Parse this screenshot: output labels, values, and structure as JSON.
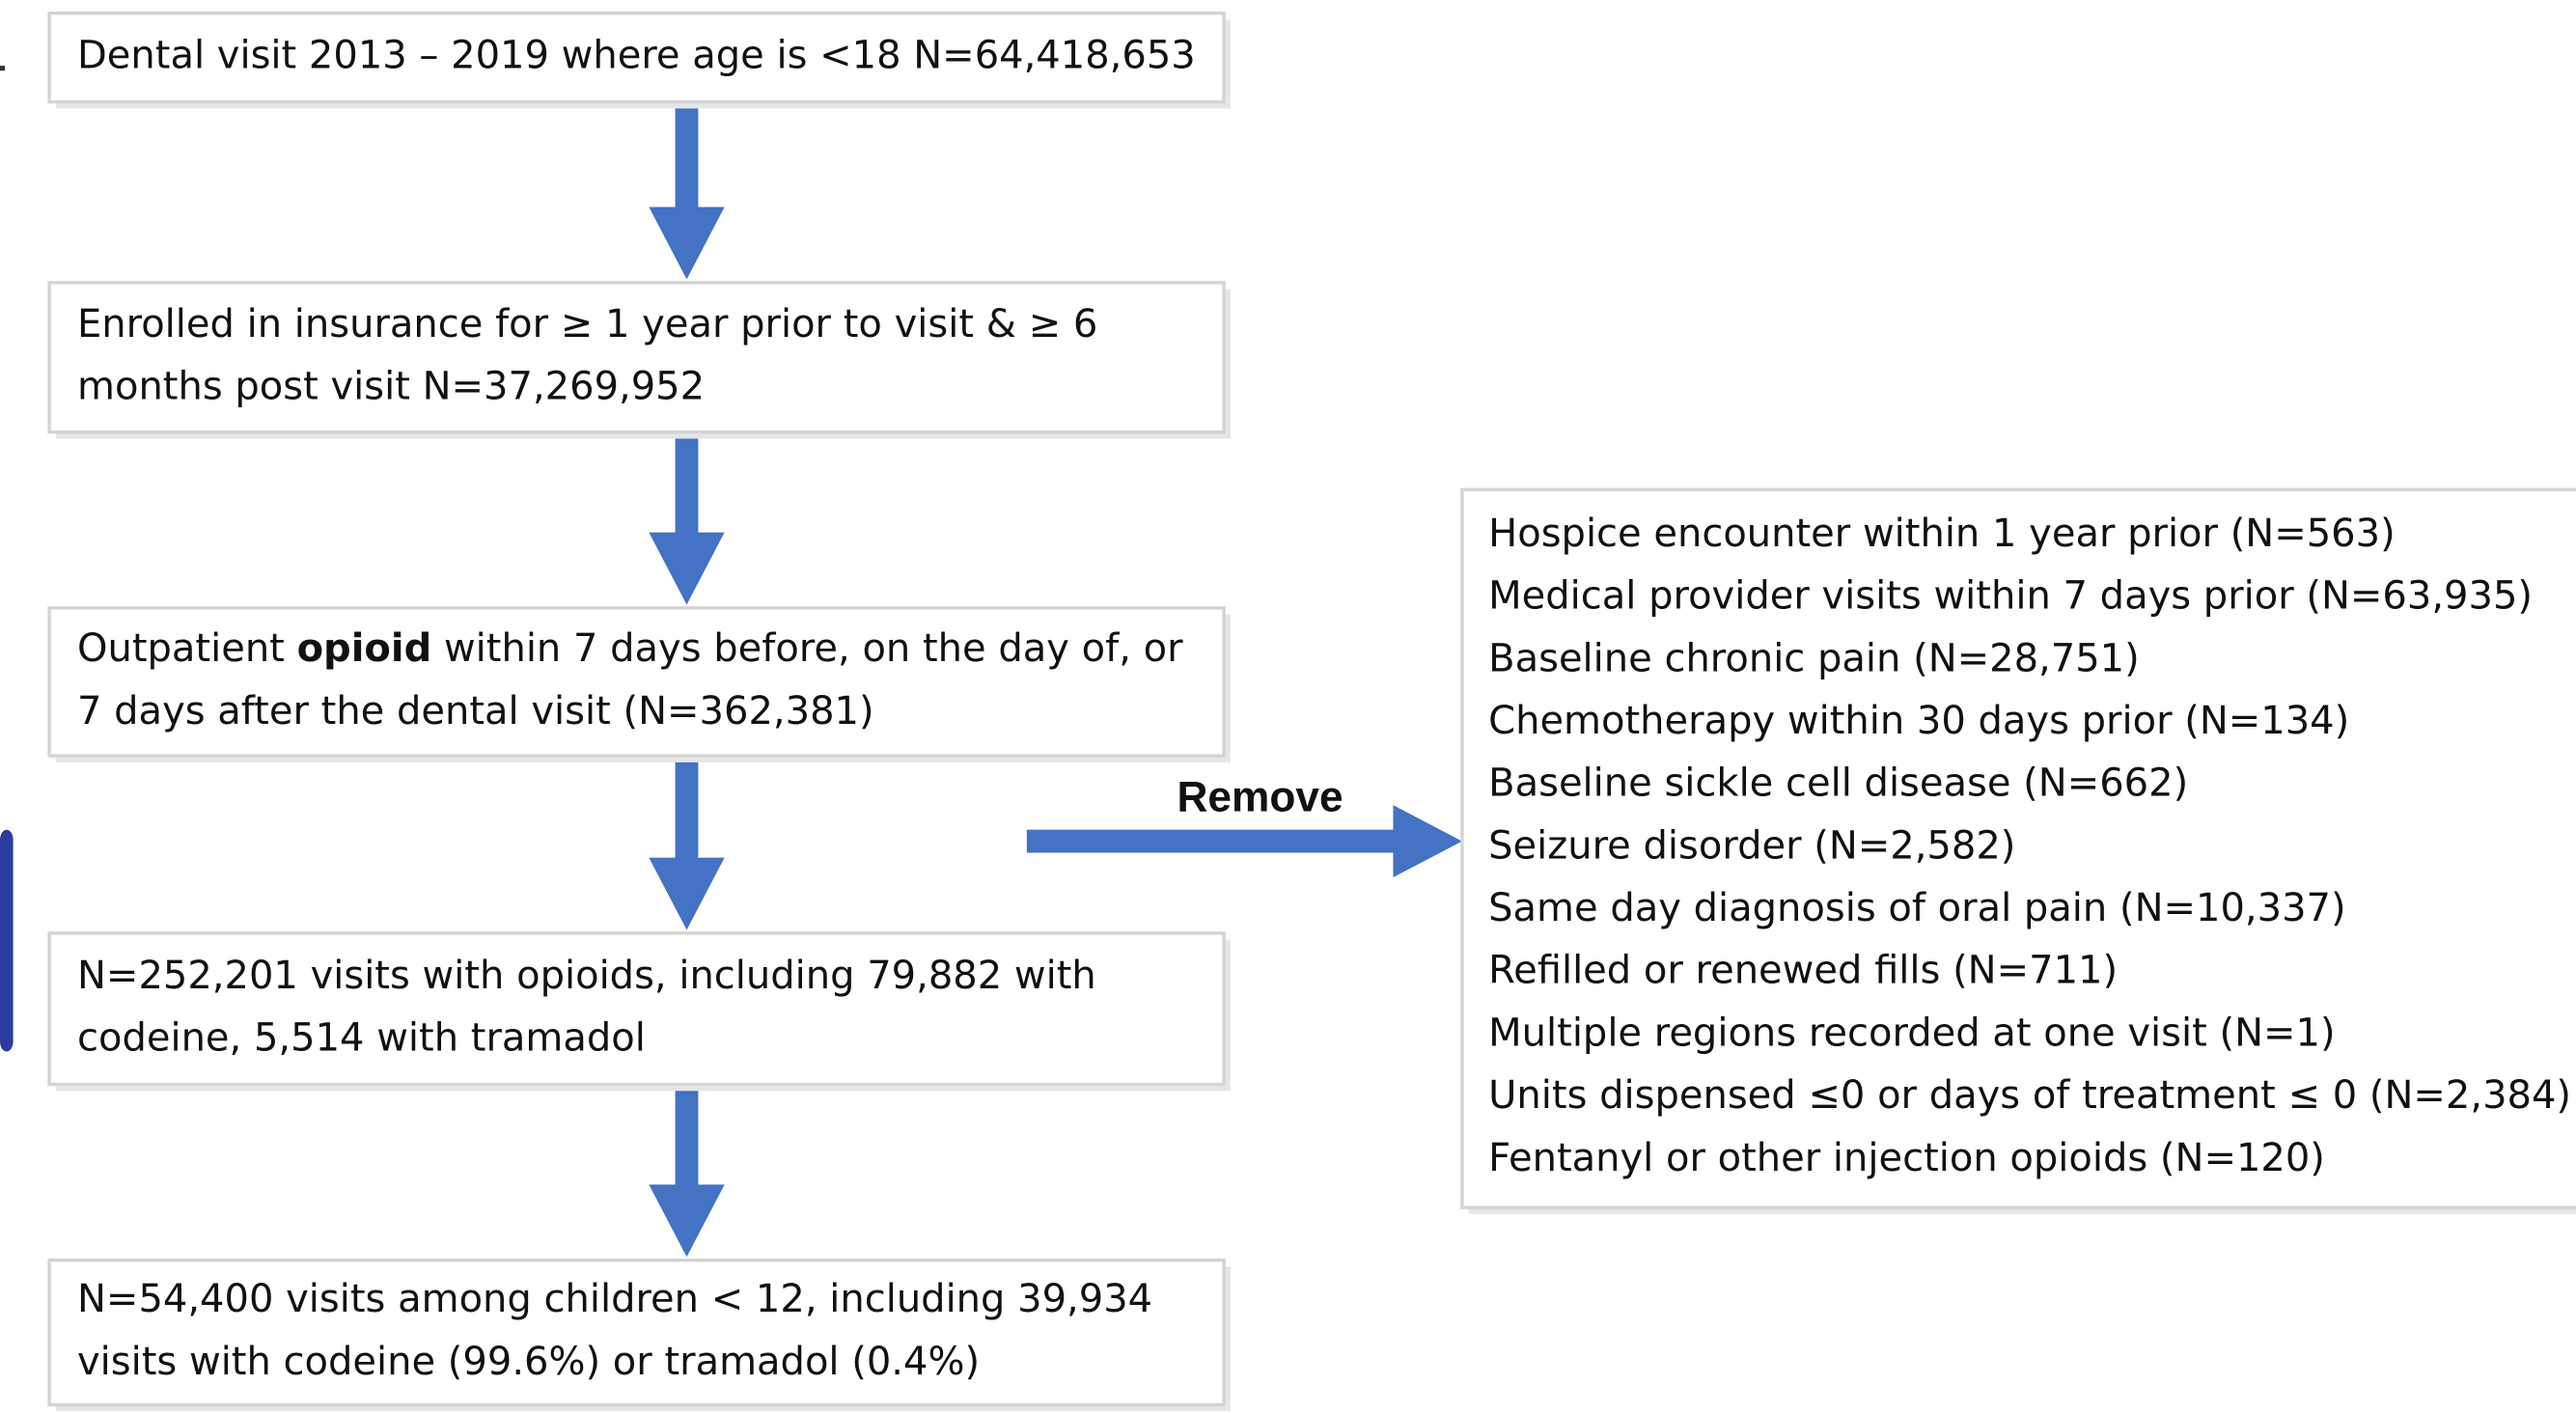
{
  "boxes": [
    {
      "lines": [
        "Dental visit 2013 – 2019 where age is <18 N=64,418,653"
      ]
    },
    {
      "lines": [
        "Enrolled in insurance for ≥ 1 year prior to visit & ≥ 6",
        "months post visit N=37,269,952"
      ]
    },
    {
      "lines": [
        {
          "before": "Outpatient ",
          "bold": "opioid",
          "after": " within 7 days before, on the day of, or"
        },
        "7 days after the dental visit (N=362,381)"
      ]
    },
    {
      "lines": [
        "N=252,201 visits with opioids, including 79,882 with",
        "codeine, 5,514 with tramadol"
      ]
    },
    {
      "lines": [
        "N=54,400 visits among children < 12, including 39,934",
        "visits with codeine (99.6%) or tramadol (0.4%)"
      ]
    }
  ],
  "remove_label": "Remove",
  "exclusions": [
    "Hospice encounter within 1 year prior (N=563)",
    "Medical provider visits within 7 days prior (N=63,935)",
    "Baseline chronic pain (N=28,751)",
    "Chemotherapy within 30 days prior (N=134)",
    "Baseline sickle cell disease (N=662)",
    "Seizure disorder (N=2,582)",
    "Same day diagnosis of oral pain (N=10,337)",
    "Refilled or renewed fills (N=711)",
    "Multiple regions recorded at one visit (N=1)",
    "Units dispensed ≤0 or days of treatment ≤ 0 (N=2,384)",
    "Fentanyl or other injection opioids (N=120)"
  ]
}
